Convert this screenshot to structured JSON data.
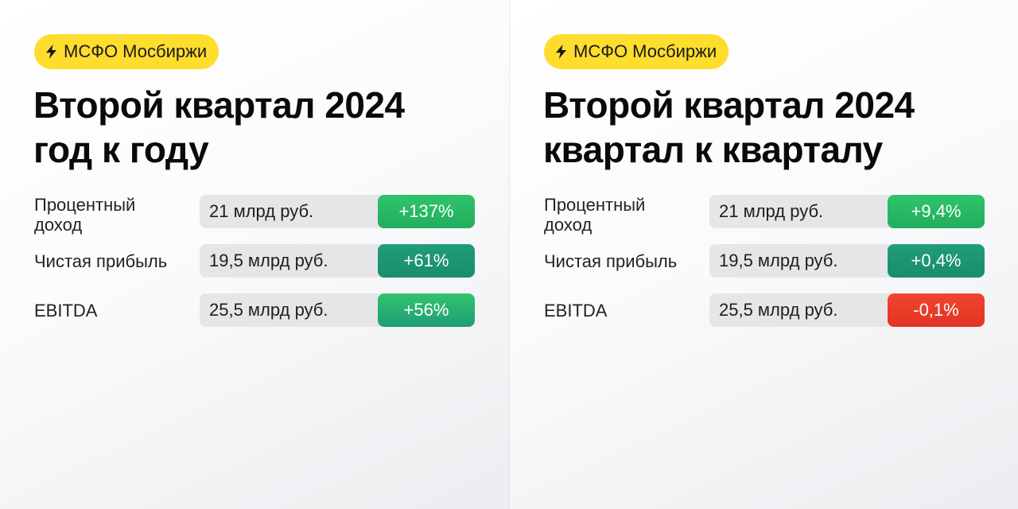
{
  "panels": [
    {
      "tag": "МСФО Мосбиржи",
      "title_line1": "Второй квартал 2024",
      "title_line2": "год к году",
      "rows": [
        {
          "label_line1": "Процентный",
          "label_line2": "доход",
          "value": "21 млрд руб.",
          "change": "+137%"
        },
        {
          "label_line1": "Чистая прибыль",
          "label_line2": "",
          "value": "19,5 млрд руб.",
          "change": "+61%"
        },
        {
          "label_line1": "EBITDA",
          "label_line2": "",
          "value": "25,5 млрд руб.",
          "change": "+56%"
        }
      ]
    },
    {
      "tag": "МСФО Мосбиржи",
      "title_line1": "Второй квартал 2024",
      "title_line2": "квартал к кварталу",
      "rows": [
        {
          "label_line1": "Процентный",
          "label_line2": "доход",
          "value": "21 млрд руб.",
          "change": "+9,4%"
        },
        {
          "label_line1": "Чистая прибыль",
          "label_line2": "",
          "value": "19,5 млрд руб.",
          "change": "+0,4%"
        },
        {
          "label_line1": "EBITDA",
          "label_line2": "",
          "value": "25,5 млрд руб.",
          "change": "-0,1%"
        }
      ]
    }
  ],
  "colors": {
    "tag_background": "#ffdd2d",
    "positive_green": "#2fc46b",
    "positive_teal": "#1f9d79",
    "negative_red": "#e23423",
    "value_pill": "#e6e6e8"
  },
  "icons": {
    "tag_icon": "lightning-bolt-icon"
  }
}
